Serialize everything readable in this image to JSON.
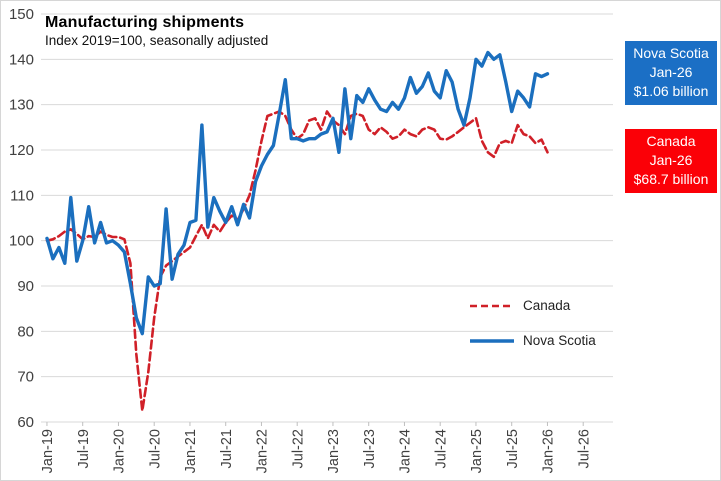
{
  "title": "Manufacturing shipments",
  "subtitle": "Index 2019=100, seasonally adjusted",
  "colors": {
    "nova_scotia": "#1b6fbe",
    "canada_line": "#d02028",
    "canada_box": "#fb0007",
    "nova_scotia_box": "#1b6fc5",
    "gridline": "#d9d9d9",
    "axis_text": "#404040"
  },
  "legend": {
    "canada_label": "Canada",
    "nova_scotia_label": "Nova Scotia"
  },
  "callouts": {
    "nova_scotia": {
      "line1": "Nova Scotia",
      "line2": "Jan-26",
      "line3": "$1.06 billion"
    },
    "canada": {
      "line1": "Canada",
      "line2": "Jan-26",
      "line3": "$68.7 billion"
    }
  },
  "chart_data": {
    "type": "line",
    "title": "Manufacturing shipments",
    "subtitle": "Index 2019=100, seasonally adjusted",
    "x_start": "Jan-2019",
    "x_frequency": "monthly",
    "x_last_point": "Jan-2026",
    "x_tick_labels": [
      "Jan-19",
      "Jul-19",
      "Jan-20",
      "Jul-20",
      "Jan-21",
      "Jul-21",
      "Jan-22",
      "Jul-22",
      "Jan-23",
      "Jul-23",
      "Jan-24",
      "Jul-24",
      "Jan-25",
      "Jul-25",
      "Jan-26",
      "Jul-26"
    ],
    "x_tick_month_index": [
      0,
      6,
      12,
      18,
      24,
      30,
      36,
      42,
      48,
      54,
      60,
      66,
      72,
      78,
      84,
      90
    ],
    "x_axis_month_domain": [
      -1,
      95
    ],
    "ylim": [
      60,
      150
    ],
    "y_ticks": [
      60,
      70,
      80,
      90,
      100,
      110,
      120,
      130,
      140,
      150
    ],
    "grid": true,
    "legend_position": "inside-lower-right",
    "series": [
      {
        "name": "Canada",
        "dash": true,
        "color": "#d02028",
        "values": [
          100,
          100.3,
          101,
          102,
          102.5,
          101.5,
          100.3,
          101,
          100.8,
          102,
          101.3,
          100.8,
          100.8,
          100.3,
          95,
          75,
          62.5,
          71,
          83,
          92,
          94.5,
          95.5,
          96.5,
          97.5,
          98.5,
          101,
          103.5,
          100.5,
          103.5,
          102,
          104,
          105.5,
          104.5,
          107,
          110,
          115.5,
          122,
          127.5,
          128,
          128.5,
          127.5,
          124.5,
          122.5,
          123.5,
          126.5,
          127,
          124.5,
          128.5,
          126.5,
          125.5,
          123.5,
          127.5,
          128,
          127.5,
          124.5,
          123.5,
          125,
          124,
          122.5,
          123,
          124.5,
          123.5,
          123,
          124.5,
          125,
          124.5,
          122.5,
          122.3,
          123,
          124,
          125,
          126,
          127,
          122,
          119.5,
          118.5,
          121.5,
          122,
          121.5,
          125.5,
          123.5,
          123,
          121.5,
          122.3,
          119.5
        ]
      },
      {
        "name": "Nova Scotia",
        "dash": false,
        "color": "#1b6fbe",
        "values": [
          100.5,
          96,
          98.5,
          95,
          109.5,
          95.5,
          100,
          107.5,
          99.5,
          104,
          99.5,
          100,
          99,
          97.5,
          90.5,
          83,
          79.5,
          92,
          90,
          90.5,
          107,
          91.5,
          97,
          99,
          104,
          104.5,
          125.5,
          103,
          109.5,
          106.5,
          104,
          107.5,
          103.5,
          108,
          105,
          113,
          116.5,
          119,
          121,
          128,
          135.5,
          122.5,
          122.5,
          122,
          122.5,
          122.5,
          123.5,
          124,
          127,
          119.5,
          133.5,
          122.5,
          132,
          130.5,
          133.5,
          131,
          129,
          128.5,
          130.5,
          129,
          131.5,
          136,
          132.5,
          134,
          137,
          133,
          131.5,
          137.5,
          135,
          129,
          125.5,
          131.5,
          140,
          138.5,
          141.5,
          140,
          141,
          135,
          128.5,
          133,
          131.5,
          129.5,
          136.8,
          136.2,
          136.8
        ]
      }
    ]
  }
}
